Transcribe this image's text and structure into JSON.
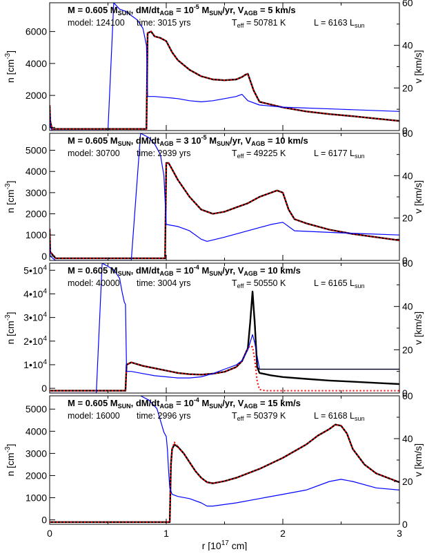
{
  "chart_data": [
    {
      "type": "line",
      "title": "M = 0.605 M_SUN , dM/dt_AGB = 10^-5 M_SUN/yr, V_AGB = 5 km/s",
      "title_parts": {
        "mass": "M = 0.605 M",
        "mass_sub": "SUN",
        "mdot": ", dM/dt",
        "mdot_sub": "AGB",
        "mdot_val": " = 10",
        "mdot_exp": "-5",
        "msun2": " M",
        "msun2_sub": "SUN",
        "rate": "/yr, V",
        "v_sub": "AGB",
        "v_val": " =  5 km/s"
      },
      "info": {
        "model": "model: 124100",
        "time": "time: 3015 yrs",
        "teff_label": "T",
        "teff_sub": "eff",
        "teff_val": " = 50781 K",
        "lum_label": "L = 6163 L",
        "lum_sub": "sun"
      },
      "xlim": [
        0,
        3
      ],
      "ylim_left": [
        -200,
        7800
      ],
      "ylim_right": [
        0,
        60
      ],
      "yticks_left": [
        0,
        2000,
        4000,
        6000
      ],
      "yticks_right": [
        0,
        20,
        40,
        60
      ],
      "series": [
        {
          "name": "n",
          "color": "#000000",
          "axis": "left",
          "x": [
            0.0,
            0.005,
            0.02,
            0.5,
            0.8,
            0.83,
            0.84,
            0.87,
            0.9,
            0.95,
            1.0,
            1.05,
            1.1,
            1.2,
            1.3,
            1.4,
            1.5,
            1.6,
            1.65,
            1.68,
            1.7,
            1.75,
            1.8,
            2.0,
            2.2,
            2.4,
            2.6,
            2.8,
            3.0
          ],
          "y": [
            1400,
            400,
            -100,
            -100,
            -100,
            -100,
            5900,
            6000,
            5700,
            5600,
            5400,
            4700,
            4200,
            3600,
            3200,
            3000,
            2950,
            3000,
            3150,
            3300,
            3350,
            2300,
            1600,
            1250,
            1000,
            830,
            700,
            550,
            400
          ]
        },
        {
          "name": "n (dotted)",
          "color": "#ff0000",
          "axis": "left",
          "dash": "2,3",
          "x": [
            0.0,
            0.005,
            0.02,
            0.5,
            0.8,
            0.83,
            0.84,
            0.87,
            0.9,
            0.95,
            1.0,
            1.05,
            1.1,
            1.2,
            1.3,
            1.4,
            1.5,
            1.6,
            1.65,
            1.68,
            1.7,
            1.75,
            1.8,
            2.0,
            2.2,
            2.4,
            2.6,
            2.8,
            3.0
          ],
          "y": [
            1400,
            400,
            -100,
            -100,
            -100,
            -100,
            5900,
            6000,
            5700,
            5600,
            5400,
            4700,
            4200,
            3600,
            3200,
            3000,
            2950,
            3000,
            3150,
            3300,
            3350,
            2300,
            1600,
            1250,
            1000,
            830,
            700,
            550,
            400
          ]
        },
        {
          "name": "v",
          "color": "#0000ff",
          "axis": "right",
          "x": [
            0.0,
            0.005,
            0.02,
            0.5,
            0.55,
            0.6,
            0.65,
            0.7,
            0.75,
            0.8,
            0.83,
            0.84,
            0.9,
            1.0,
            1.1,
            1.2,
            1.3,
            1.4,
            1.5,
            1.6,
            1.65,
            1.7,
            1.8,
            2.0,
            2.5,
            3.0
          ],
          "y": [
            8,
            2,
            0,
            0,
            60,
            57,
            56,
            54,
            52,
            48,
            40,
            16,
            16,
            15.5,
            15,
            14,
            13.5,
            14,
            15,
            16,
            17,
            14,
            12,
            11,
            10,
            9
          ]
        }
      ]
    },
    {
      "type": "line",
      "title": "M = 0.605 M_SUN , dM/dt_AGB = 3 10^-5 M_SUN/yr, V_AGB = 10 km/s",
      "title_parts": {
        "mass": "M = 0.605 M",
        "mass_sub": "SUN",
        "mdot": ", dM/dt",
        "mdot_sub": "AGB",
        "mdot_val": " = 3 10",
        "mdot_exp": "-5",
        "msun2": " M",
        "msun2_sub": "SUN",
        "rate": "/yr, V",
        "v_sub": "AGB",
        "v_val": " = 10 km/s"
      },
      "info": {
        "model": "model: 30700",
        "time": "time: 2939 yrs",
        "teff_label": "T",
        "teff_sub": "eff",
        "teff_val": " = 49225 K",
        "lum_label": "L = 6177 L",
        "lum_sub": "sun"
      },
      "xlim": [
        0,
        3
      ],
      "ylim_left": [
        -200,
        5800
      ],
      "ylim_right": [
        0,
        60
      ],
      "yticks_left": [
        0,
        1000,
        2000,
        3000,
        4000,
        5000
      ],
      "yticks_right": [
        0,
        20,
        40,
        60
      ],
      "series": [
        {
          "name": "n",
          "color": "#000000",
          "axis": "left",
          "x": [
            0.0,
            0.005,
            0.05,
            0.9,
            0.98,
            0.99,
            1.0,
            1.02,
            1.05,
            1.1,
            1.2,
            1.3,
            1.4,
            1.5,
            1.6,
            1.7,
            1.8,
            1.9,
            1.95,
            2.0,
            2.05,
            2.1,
            2.2,
            2.4,
            2.6,
            2.8,
            3.0
          ],
          "y": [
            1300,
            200,
            -100,
            -100,
            -100,
            -100,
            4400,
            4400,
            4100,
            3600,
            2800,
            2200,
            2000,
            2100,
            2300,
            2500,
            2800,
            3000,
            3100,
            3000,
            2200,
            1750,
            1550,
            1250,
            1050,
            900,
            750
          ]
        },
        {
          "name": "n (dotted)",
          "color": "#ff0000",
          "axis": "left",
          "dash": "2,3",
          "x": [
            0.0,
            0.005,
            0.05,
            0.9,
            0.98,
            0.99,
            1.0,
            1.02,
            1.05,
            1.1,
            1.2,
            1.3,
            1.4,
            1.5,
            1.6,
            1.7,
            1.8,
            1.9,
            1.95,
            2.0,
            2.05,
            2.1,
            2.2,
            2.4,
            2.6,
            2.8,
            3.0
          ],
          "y": [
            1300,
            200,
            -100,
            -100,
            -100,
            -100,
            4400,
            4400,
            4100,
            3600,
            2800,
            2200,
            2000,
            2100,
            2300,
            2500,
            2800,
            3000,
            3100,
            3000,
            2200,
            1750,
            1550,
            1250,
            1050,
            900,
            750
          ]
        },
        {
          "name": "v",
          "color": "#0000ff",
          "axis": "right",
          "x": [
            0.0,
            0.005,
            0.05,
            0.7,
            0.78,
            0.85,
            0.9,
            0.95,
            0.98,
            1.0,
            1.1,
            1.2,
            1.3,
            1.35,
            1.5,
            1.7,
            1.9,
            2.0,
            2.1,
            2.5,
            3.0
          ],
          "y": [
            8,
            2,
            0,
            0,
            60,
            58,
            55,
            50,
            40,
            17,
            16,
            14,
            10,
            9,
            11,
            14,
            17,
            18,
            14,
            13,
            12
          ]
        }
      ]
    },
    {
      "type": "line",
      "title": "M = 0.605 M_SUN , dM/dt_AGB = 10^-4 M_SUN/yr, V_AGB = 10 km/s",
      "title_parts": {
        "mass": "M = 0.605 M",
        "mass_sub": "SUN",
        "mdot": ", dM/dt",
        "mdot_sub": "AGB",
        "mdot_val": " = 10",
        "mdot_exp": "-4",
        "msun2": " M",
        "msun2_sub": "SUN",
        "rate": "/yr, V",
        "v_sub": "AGB",
        "v_val": " = 10 km/s"
      },
      "info": {
        "model": "model: 40000",
        "time": "time: 3004 yrs",
        "teff_label": "T",
        "teff_sub": "eff",
        "teff_val": " = 50550 K",
        "lum_label": "L = 6165 L",
        "lum_sub": "sun"
      },
      "xlim": [
        0,
        3
      ],
      "ylim_left": [
        -2000,
        53000
      ],
      "ylim_right": [
        0,
        60
      ],
      "yticks_left": [
        0,
        10000,
        20000,
        30000,
        40000,
        50000
      ],
      "yticks_left_labels": [
        {
          "mant": "0",
          "exp": ""
        },
        {
          "mant": "1•10",
          "exp": "4"
        },
        {
          "mant": "2•10",
          "exp": "4"
        },
        {
          "mant": "3•10",
          "exp": "4"
        },
        {
          "mant": "4•10",
          "exp": "4"
        },
        {
          "mant": "5•10",
          "exp": "4"
        }
      ],
      "yticks_right": [
        0,
        20,
        40,
        60
      ],
      "series": [
        {
          "name": "n",
          "color": "#000000",
          "axis": "left",
          "x": [
            0.0,
            0.02,
            0.6,
            0.65,
            0.66,
            0.7,
            0.8,
            0.9,
            1.0,
            1.1,
            1.2,
            1.3,
            1.4,
            1.5,
            1.6,
            1.65,
            1.7,
            1.72,
            1.74,
            1.76,
            1.78,
            1.8,
            1.9,
            2.0,
            2.2,
            2.4,
            2.6,
            2.8,
            3.0
          ],
          "y": [
            -1000,
            -1000,
            -1000,
            -1000,
            10000,
            11000,
            9500,
            8500,
            7500,
            6500,
            6000,
            5800,
            6200,
            7000,
            9000,
            11500,
            17000,
            28000,
            41000,
            27000,
            9000,
            6500,
            5500,
            4800,
            4000,
            3300,
            2800,
            2300,
            1800
          ]
        },
        {
          "name": "n (dotted)",
          "color": "#ff0000",
          "axis": "left",
          "dash": "2,3",
          "x": [
            0.0,
            0.02,
            0.6,
            0.65,
            0.66,
            0.7,
            0.8,
            0.9,
            1.0,
            1.1,
            1.2,
            1.3,
            1.4,
            1.5,
            1.6,
            1.65,
            1.7,
            1.72,
            1.74,
            1.76,
            1.78,
            1.8,
            1.85,
            3.0
          ],
          "y": [
            -1000,
            -1000,
            -1000,
            -1000,
            10000,
            11000,
            9500,
            8500,
            7500,
            6500,
            6000,
            5800,
            6200,
            7000,
            9000,
            11500,
            17000,
            18000,
            17500,
            12000,
            3000,
            -500,
            -1000,
            -1000
          ]
        },
        {
          "name": "v",
          "color": "#0000ff",
          "axis": "right",
          "x": [
            0.0,
            0.02,
            0.4,
            0.45,
            0.55,
            0.6,
            0.62,
            0.64,
            0.65,
            0.66,
            0.7,
            0.8,
            0.9,
            1.0,
            1.1,
            1.2,
            1.3,
            1.4,
            1.5,
            1.6,
            1.65,
            1.7,
            1.74,
            1.76,
            1.8,
            2.0,
            2.5,
            3.0
          ],
          "y": [
            0,
            0,
            0,
            60,
            57,
            53,
            47,
            42,
            41,
            10,
            10,
            9,
            8,
            7.5,
            7,
            7,
            7.5,
            9,
            11,
            13,
            15,
            20,
            27,
            23,
            11,
            11,
            11,
            11
          ]
        },
        {
          "name": "v (thin black)",
          "color": "#000000",
          "axis": "right",
          "thin": true,
          "x": [
            1.76,
            1.78,
            1.8,
            2.0,
            2.5,
            3.0
          ],
          "y": [
            35,
            12,
            11,
            11,
            11,
            11
          ]
        }
      ]
    },
    {
      "type": "line",
      "title": "M = 0.605 M_SUN , dM/dt_AGB = 10^-4 M_SUN/yr, V_AGB = 15 km/s",
      "title_parts": {
        "mass": "M = 0.605 M",
        "mass_sub": "SUN",
        "mdot": ", dM/dt",
        "mdot_sub": "AGB",
        "mdot_val": " = 10",
        "mdot_exp": "-4",
        "msun2": " M",
        "msun2_sub": "SUN",
        "rate": "/yr, V",
        "v_sub": "AGB",
        "v_val": " = 15 km/s"
      },
      "info": {
        "model": "model: 16000",
        "time": "time: 2996 yrs",
        "teff_label": "T",
        "teff_sub": "eff",
        "teff_val": " = 50379 K",
        "lum_label": "L = 6168 L",
        "lum_sub": "sun"
      },
      "xlim": [
        0,
        3
      ],
      "ylim_left": [
        -200,
        5600
      ],
      "ylim_right": [
        0,
        60
      ],
      "yticks_left": [
        0,
        1000,
        2000,
        3000,
        4000,
        5000
      ],
      "yticks_right": [
        0,
        20,
        40,
        60
      ],
      "xticks": [
        0,
        1,
        2,
        3
      ],
      "xlabel": "r [10^17 cm]",
      "series": [
        {
          "name": "n",
          "color": "#000000",
          "axis": "left",
          "x": [
            0.0,
            0.5,
            1.0,
            1.03,
            1.04,
            1.05,
            1.07,
            1.1,
            1.15,
            1.2,
            1.25,
            1.3,
            1.35,
            1.4,
            1.5,
            1.6,
            1.8,
            2.0,
            2.2,
            2.3,
            2.4,
            2.45,
            2.5,
            2.55,
            2.6,
            2.7,
            2.8,
            2.9,
            3.0
          ],
          "y": [
            -100,
            -100,
            -100,
            -100,
            2500,
            3200,
            3400,
            3300,
            3000,
            2600,
            2200,
            1900,
            1700,
            1650,
            1750,
            1900,
            2300,
            2800,
            3400,
            3800,
            4100,
            4300,
            4250,
            3900,
            3200,
            2500,
            2100,
            1900,
            1700
          ]
        },
        {
          "name": "n (dotted)",
          "color": "#ff0000",
          "axis": "left",
          "dash": "2,3",
          "x": [
            0.0,
            0.5,
            1.0,
            1.03,
            1.04,
            1.05,
            1.07,
            1.1,
            1.15,
            1.2,
            1.25,
            1.3,
            1.35,
            1.4,
            1.5,
            1.6,
            1.8,
            2.0,
            2.2,
            2.3,
            2.4,
            2.45,
            2.5,
            2.55,
            2.6,
            2.7,
            2.8,
            2.9,
            3.0
          ],
          "y": [
            -100,
            -100,
            -100,
            -100,
            2500,
            3200,
            3500,
            3300,
            3000,
            2600,
            2200,
            1900,
            1700,
            1650,
            1750,
            1900,
            2300,
            2800,
            3400,
            3800,
            4100,
            4300,
            4250,
            3900,
            3200,
            2500,
            2100,
            1900,
            1700
          ]
        },
        {
          "name": "v",
          "color": "#0000ff",
          "axis": "right",
          "x": [
            0.78,
            0.85,
            0.92,
            0.98,
            1.0,
            1.01,
            1.02,
            1.03,
            1.05,
            1.1,
            1.2,
            1.3,
            1.35,
            1.4,
            1.6,
            1.8,
            2.0,
            2.2,
            2.4,
            2.5,
            2.6,
            2.8,
            3.0
          ],
          "y": [
            60,
            58,
            54,
            43,
            41,
            35,
            25,
            17,
            14,
            13,
            12,
            10,
            8.5,
            8.5,
            10,
            12,
            14,
            16,
            20,
            21,
            20,
            17,
            16
          ]
        }
      ]
    }
  ],
  "axis_labels": {
    "left": {
      "text": "n [cm",
      "exp": "-3",
      "close": "]"
    },
    "right": "v [km/s]",
    "bottom": {
      "text": "r [10",
      "exp": "17",
      "close": " cm]"
    }
  }
}
